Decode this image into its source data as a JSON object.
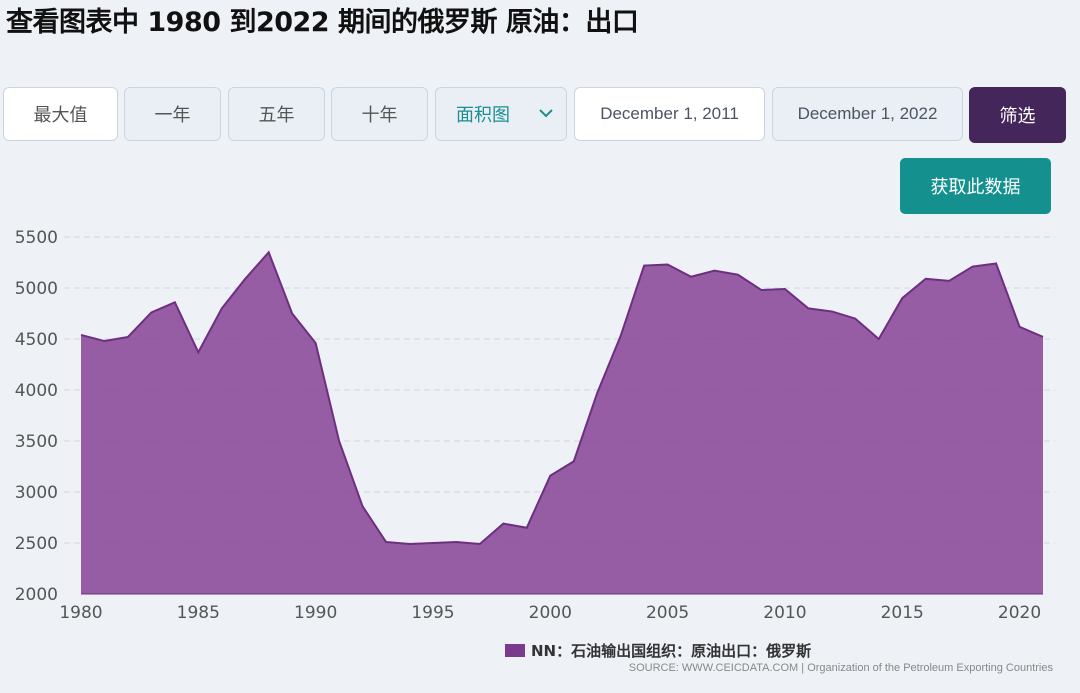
{
  "page": {
    "title": "查看图表中 1980 到2022 期间的俄罗斯 原油：出口"
  },
  "controls": {
    "range_buttons": [
      "最大值",
      "一年",
      "五年",
      "十年"
    ],
    "chart_type_value": "面积图",
    "date_from": "December 1, 2011",
    "date_to": "December 1, 2022",
    "filter_label": "筛选",
    "get_data_label": "获取此数据"
  },
  "colors": {
    "area_fill": "#8e4f9c",
    "area_line": "#6d2f80",
    "filter_button": "#45265a",
    "get_data_button": "#14918f",
    "select_text": "#1b8f8f"
  },
  "chart_data": {
    "type": "area",
    "title": "",
    "xlabel": "",
    "ylabel": "",
    "grid": true,
    "legend_position": "bottom",
    "ylim": [
      2000,
      5500
    ],
    "xlim": [
      1980,
      2021
    ],
    "y_ticks": [
      2000,
      2500,
      3000,
      3500,
      4000,
      4500,
      5000,
      5500
    ],
    "x_ticks": [
      1980,
      1985,
      1990,
      1995,
      2000,
      2005,
      2010,
      2015,
      2020
    ],
    "series": [
      {
        "name": "NN：石油输出国组织：原油出口：俄罗斯",
        "x": [
          1980,
          1981,
          1982,
          1983,
          1984,
          1985,
          1986,
          1987,
          1988,
          1989,
          1990,
          1991,
          1992,
          1993,
          1994,
          1995,
          1996,
          1997,
          1998,
          1999,
          2000,
          2001,
          2002,
          2003,
          2004,
          2005,
          2006,
          2007,
          2008,
          2009,
          2010,
          2011,
          2012,
          2013,
          2014,
          2015,
          2016,
          2017,
          2018,
          2019,
          2020,
          2021
        ],
        "values": [
          4540,
          4480,
          4520,
          4760,
          4860,
          4370,
          4800,
          5090,
          5350,
          4750,
          4460,
          3500,
          2860,
          2510,
          2490,
          2500,
          2510,
          2490,
          2690,
          2650,
          3160,
          3300,
          3970,
          4530,
          5220,
          5230,
          5110,
          5170,
          5130,
          4980,
          4990,
          4800,
          4770,
          4700,
          4500,
          4900,
          5090,
          5070,
          5210,
          5240,
          4620,
          4520
        ]
      }
    ]
  },
  "legend": {
    "label": "NN：石油输出国组织：原油出口：俄罗斯"
  },
  "source": {
    "text": "SOURCE: WWW.CEICDATA.COM | Organization of the Petroleum Exporting Countries"
  }
}
